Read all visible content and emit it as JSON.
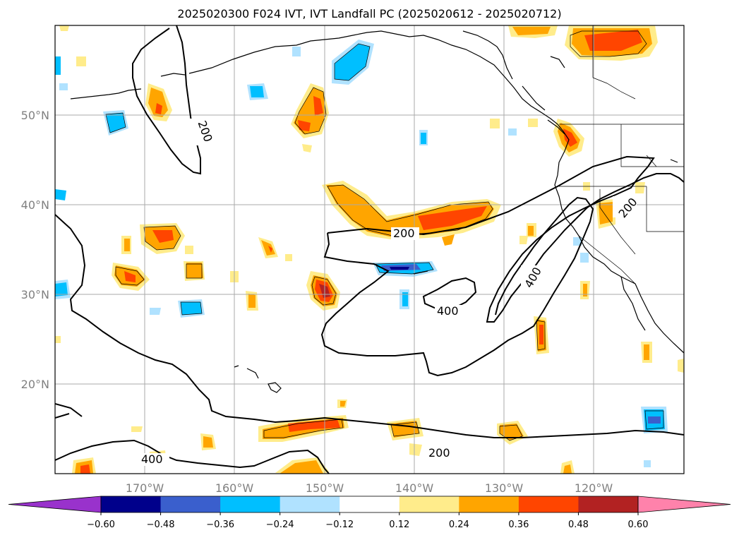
{
  "title": "2025020300 F024 IVT, IVT Landfall PC (2025020612 - 2025020712)",
  "map": {
    "lat_labels": [
      "50°N",
      "40°N",
      "30°N",
      "20°N"
    ],
    "lon_labels": [
      "170°W",
      "160°W",
      "150°W",
      "140°W",
      "130°W",
      "120°W"
    ],
    "contour_labels": [
      {
        "text": "200",
        "ref": "north-pacific"
      },
      {
        "text": "200",
        "ref": "central"
      },
      {
        "text": "200",
        "ref": "california"
      },
      {
        "text": "200",
        "ref": "south"
      },
      {
        "text": "400",
        "ref": "central"
      },
      {
        "text": "400",
        "ref": "offshore"
      },
      {
        "text": "400",
        "ref": "southwest"
      }
    ]
  },
  "colorbar": {
    "ticks": [
      "−0.60",
      "−0.48",
      "−0.36",
      "−0.24",
      "−0.12",
      "0.12",
      "0.24",
      "0.36",
      "0.48",
      "0.60"
    ],
    "colors": [
      "#9932cc",
      "#00008b",
      "#3a5fcd",
      "#00bfff",
      "#b0e2ff",
      "#ffffff",
      "#ffec8b",
      "#ffa500",
      "#ff4500",
      "#b22222",
      "#ff82ab"
    ],
    "extend": "both"
  }
}
